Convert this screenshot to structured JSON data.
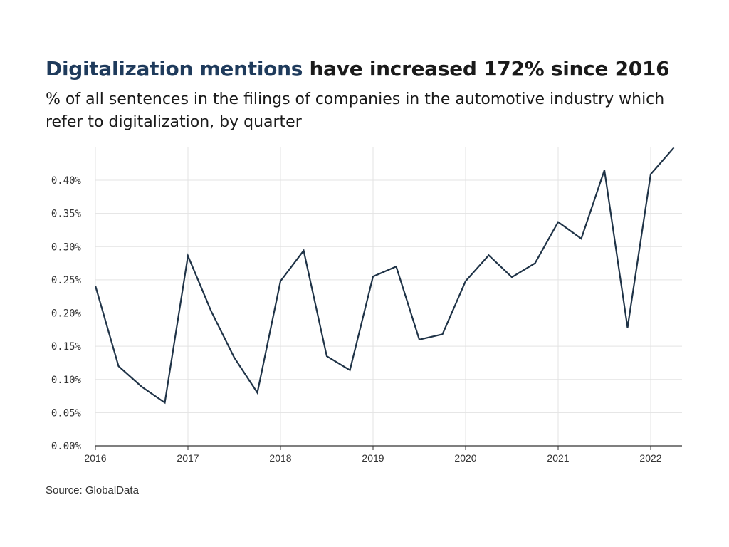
{
  "title": {
    "highlight": "Digitalization mentions",
    "rest": " have increased 172% since 2016"
  },
  "subtitle": "% of all sentences in the filings of companies in the automotive industry which refer to digitalization, by quarter",
  "source": "Source: GlobalData",
  "colors": {
    "line": "#1f3347",
    "title_highlight": "#1f3b5c",
    "grid": "#e3e3e3"
  },
  "chart_data": {
    "type": "line",
    "title": "Digitalization mentions have increased 172% since 2016",
    "xlabel": "",
    "ylabel": "",
    "ylim": [
      0,
      0.45
    ],
    "grid": true,
    "x_ticks": [
      "2016",
      "2017",
      "2018",
      "2019",
      "2020",
      "2021",
      "2022"
    ],
    "y_ticks": [
      "0.00%",
      "0.05%",
      "0.10%",
      "0.15%",
      "0.20%",
      "0.25%",
      "0.30%",
      "0.35%",
      "0.40%"
    ],
    "x": [
      "2016Q1",
      "2016Q2",
      "2016Q3",
      "2016Q4",
      "2017Q1",
      "2017Q2",
      "2017Q3",
      "2017Q4",
      "2018Q1",
      "2018Q2",
      "2018Q3",
      "2018Q4",
      "2019Q1",
      "2019Q2",
      "2019Q3",
      "2019Q4",
      "2020Q1",
      "2020Q2",
      "2020Q3",
      "2020Q4",
      "2021Q1",
      "2021Q2",
      "2021Q3",
      "2021Q4",
      "2022Q1",
      "2022Q2"
    ],
    "values": [
      0.241,
      0.12,
      0.089,
      0.065,
      0.286,
      0.203,
      0.133,
      0.08,
      0.248,
      0.294,
      0.135,
      0.114,
      0.255,
      0.27,
      0.16,
      0.168,
      0.248,
      0.287,
      0.254,
      0.275,
      0.337,
      0.312,
      0.415,
      0.178,
      0.409,
      0.449
    ]
  }
}
